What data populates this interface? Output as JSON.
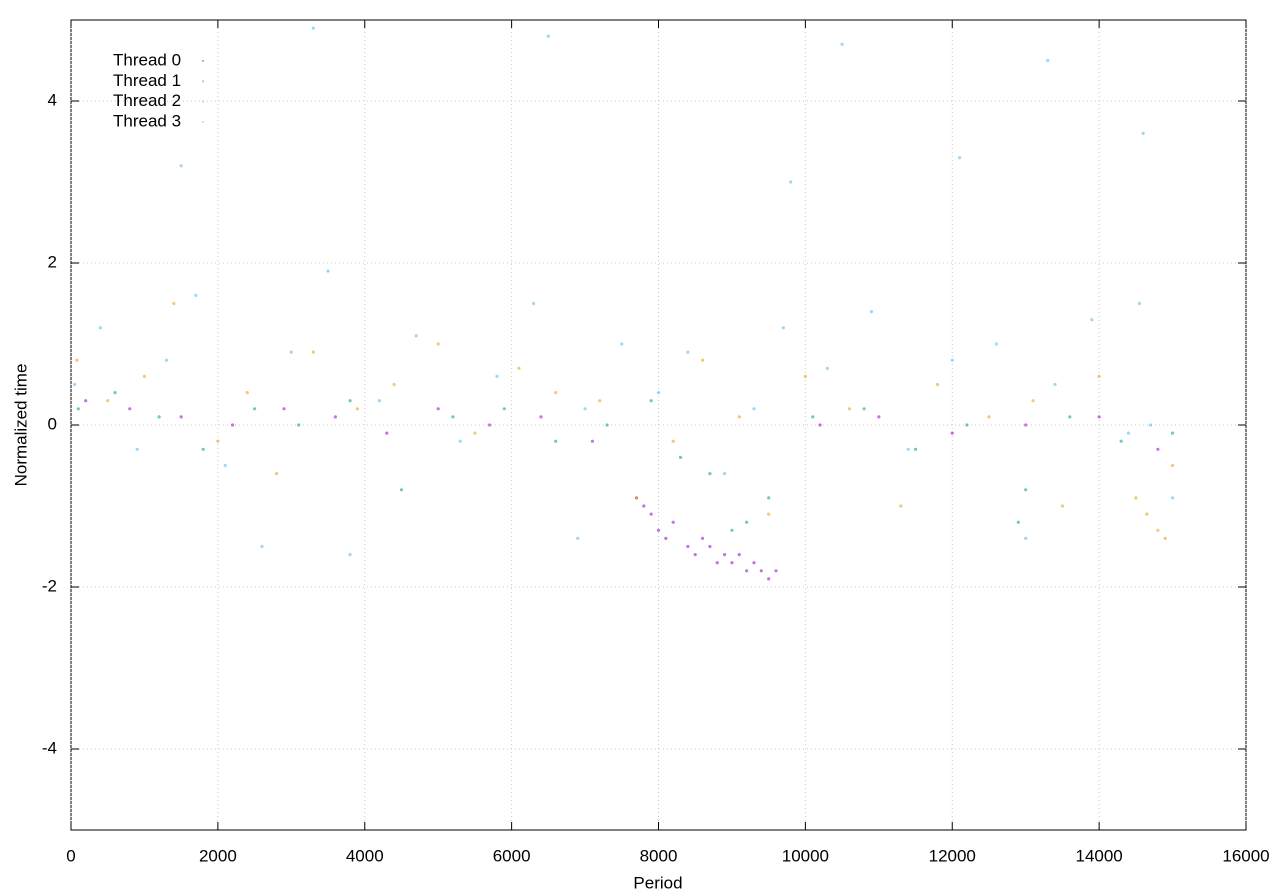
{
  "chart_data": {
    "type": "scatter",
    "x_label": "Period",
    "y_label": "Normalized time",
    "xlim": [
      0,
      16000
    ],
    "xticks": [
      0,
      2000,
      4000,
      6000,
      8000,
      10000,
      12000,
      14000,
      16000
    ],
    "ylim": [
      -5,
      5
    ],
    "yticks": [
      -4,
      -2,
      0,
      2,
      4
    ],
    "grid": true,
    "legend": "top-left",
    "series": [
      {
        "name": "Thread 0",
        "color": "#9400d3",
        "x": [
          200,
          800,
          1500,
          2200,
          2900,
          3600,
          4300,
          5000,
          5700,
          6400,
          7100,
          7700,
          7800,
          7900,
          8000,
          8100,
          8200,
          8400,
          8500,
          8600,
          8700,
          8800,
          8900,
          9000,
          9100,
          9200,
          9300,
          9400,
          9500,
          9600,
          10200,
          11000,
          12000,
          13000,
          14000,
          14800
        ],
        "values": [
          0.3,
          0.2,
          0.1,
          0.0,
          0.2,
          0.1,
          -0.1,
          0.2,
          0.0,
          0.1,
          -0.2,
          -0.9,
          -1.0,
          -1.1,
          -1.3,
          -1.4,
          -1.2,
          -1.5,
          -1.6,
          -1.4,
          -1.5,
          -1.7,
          -1.6,
          -1.7,
          -1.6,
          -1.8,
          -1.7,
          -1.8,
          -1.9,
          -1.8,
          0.0,
          0.1,
          -0.1,
          0.0,
          0.1,
          -0.3
        ]
      },
      {
        "name": "Thread 1",
        "color": "#009e73",
        "x": [
          100,
          600,
          1200,
          1800,
          2500,
          3100,
          3800,
          4500,
          5200,
          5900,
          6600,
          7300,
          7900,
          8300,
          8700,
          9000,
          9200,
          9500,
          10100,
          10800,
          11500,
          12200,
          12900,
          13000,
          13600,
          14300,
          15000
        ],
        "values": [
          0.2,
          0.4,
          0.1,
          -0.3,
          0.2,
          0.0,
          0.3,
          -0.8,
          0.1,
          0.2,
          -0.2,
          0.0,
          0.3,
          -0.4,
          -0.6,
          -1.3,
          -1.2,
          -0.9,
          0.1,
          0.2,
          -0.3,
          0.0,
          -1.2,
          -0.8,
          0.1,
          -0.2,
          -0.1
        ]
      },
      {
        "name": "Thread 2",
        "color": "#56b4e9",
        "x": [
          50,
          400,
          900,
          1300,
          1700,
          2100,
          2600,
          3000,
          3500,
          3800,
          4200,
          4700,
          5300,
          5800,
          6300,
          6900,
          7000,
          7500,
          8000,
          8400,
          8900,
          9300,
          9700,
          10300,
          10900,
          11400,
          12000,
          12600,
          13000,
          13400,
          13900,
          14400,
          14550,
          14700,
          15000,
          1500,
          3300,
          6500,
          9800,
          12100,
          13300,
          14600,
          10500
        ],
        "values": [
          0.5,
          1.2,
          -0.3,
          0.8,
          1.6,
          -0.5,
          -1.5,
          0.9,
          1.9,
          -1.6,
          0.3,
          1.1,
          -0.2,
          0.6,
          1.5,
          -1.4,
          0.2,
          1.0,
          0.4,
          0.9,
          -0.6,
          0.2,
          1.2,
          0.7,
          1.4,
          -0.3,
          0.8,
          1.0,
          -1.4,
          0.5,
          1.3,
          -0.1,
          1.5,
          0.0,
          -0.9,
          3.2,
          4.9,
          4.8,
          3.0,
          3.3,
          4.5,
          3.6,
          4.7
        ]
      },
      {
        "name": "Thread 3",
        "color": "#e69f00",
        "x": [
          80,
          500,
          1000,
          1400,
          2000,
          2400,
          2800,
          3300,
          3900,
          4400,
          5000,
          5500,
          6100,
          6600,
          7200,
          7700,
          8200,
          8600,
          9100,
          9500,
          10000,
          10600,
          11300,
          11800,
          12500,
          13100,
          13500,
          14000,
          14500,
          14650,
          14800,
          14900,
          15000
        ],
        "values": [
          0.8,
          0.3,
          0.6,
          1.5,
          -0.2,
          0.4,
          -0.6,
          0.9,
          0.2,
          0.5,
          1.0,
          -0.1,
          0.7,
          0.4,
          0.3,
          -0.9,
          -0.2,
          0.8,
          0.1,
          -1.1,
          0.6,
          0.2,
          -1.0,
          0.5,
          0.1,
          0.3,
          -1.0,
          0.6,
          -0.9,
          -1.1,
          -1.3,
          -1.4,
          -0.5
        ]
      }
    ]
  }
}
